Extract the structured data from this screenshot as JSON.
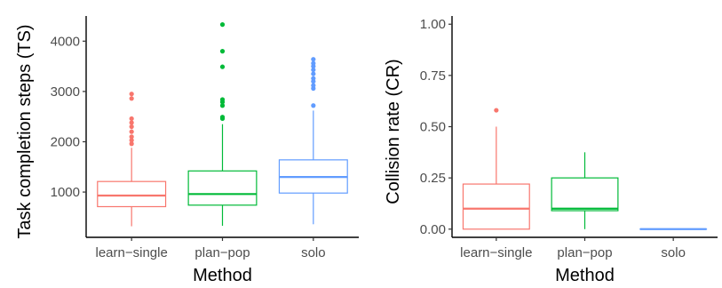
{
  "chart_data": [
    {
      "type": "boxplot",
      "xlabel": "Method",
      "ylabel": "Task completion steps (TS)",
      "categories": [
        "learn−single",
        "plan−pop",
        "solo"
      ],
      "yticks": [
        1000,
        2000,
        3000,
        4000
      ],
      "yticklabels": [
        "1000",
        "2000",
        "3000",
        "4000"
      ],
      "ylim": [
        100,
        4500
      ],
      "grid": false,
      "boxes": [
        {
          "category": "learn−single",
          "color": "#F8766D",
          "whisker_low": 320,
          "q1": 710,
          "median": 930,
          "q3": 1210,
          "whisker_high": 1880,
          "outliers": [
            1960,
            2030,
            2100,
            2200,
            2300,
            2380,
            2460,
            2860,
            2950
          ]
        },
        {
          "category": "plan−pop",
          "color": "#00BA38",
          "whisker_low": 330,
          "q1": 740,
          "median": 960,
          "q3": 1420,
          "whisker_high": 2350,
          "outliers": [
            2460,
            2490,
            2720,
            2790,
            2840,
            3490,
            3800,
            4330
          ]
        },
        {
          "category": "solo",
          "color": "#619CFF",
          "whisker_low": 360,
          "q1": 980,
          "median": 1300,
          "q3": 1640,
          "whisker_high": 2620,
          "outliers": [
            2720,
            3060,
            3120,
            3200,
            3260,
            3350,
            3430,
            3500,
            3560,
            3640
          ]
        }
      ]
    },
    {
      "type": "boxplot",
      "xlabel": "Method",
      "ylabel": "Collision rate (CR)",
      "categories": [
        "learn−single",
        "plan−pop",
        "solo"
      ],
      "yticks": [
        0,
        0.25,
        0.5,
        0.75,
        1.0
      ],
      "yticklabels": [
        "0.00",
        "0.25",
        "0.50",
        "0.75",
        "1.00"
      ],
      "ylim": [
        -0.04,
        1.04
      ],
      "grid": false,
      "boxes": [
        {
          "category": "learn−single",
          "color": "#F8766D",
          "whisker_low": 0.0,
          "q1": 0.0,
          "median": 0.1,
          "q3": 0.22,
          "whisker_high": 0.5,
          "outliers": [
            0.58
          ]
        },
        {
          "category": "plan−pop",
          "color": "#00BA38",
          "whisker_low": 0.0,
          "q1": 0.09,
          "median": 0.1,
          "q3": 0.25,
          "whisker_high": 0.375,
          "outliers": []
        },
        {
          "category": "solo",
          "color": "#619CFF",
          "whisker_low": 0.0,
          "q1": 0.0,
          "median": 0.0,
          "q3": 0.0,
          "whisker_high": 0.0,
          "outliers": []
        }
      ]
    }
  ]
}
